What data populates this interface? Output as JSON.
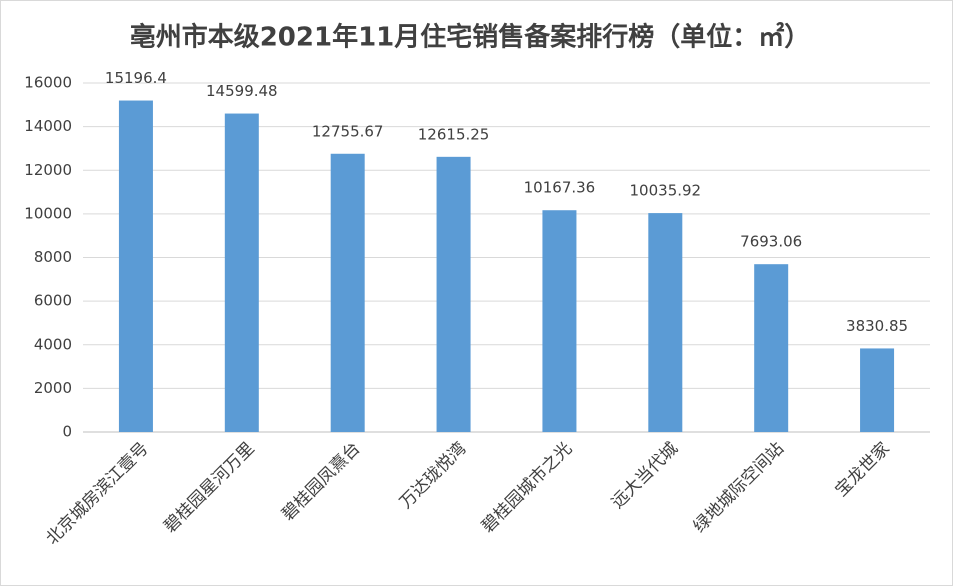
{
  "chart_data": {
    "type": "bar",
    "title": "亳州市本级2021年11月住宅销售备案排行榜（单位：㎡）",
    "categories": [
      "北京城房滨江壹号",
      "碧桂园星河万里",
      "碧桂园凤熹台",
      "万达珑悦湾",
      "碧桂园城市之光",
      "远大当代城",
      "绿地城际空间站",
      "宝龙世家"
    ],
    "values": [
      15196.4,
      14599.48,
      12755.67,
      12615.25,
      10167.36,
      10035.92,
      7693.06,
      3830.85
    ],
    "color": "#5b9bd5",
    "ylim": [
      0,
      16000
    ],
    "yticks": [
      0,
      2000,
      4000,
      6000,
      8000,
      10000,
      12000,
      14000,
      16000
    ],
    "grid": true
  }
}
